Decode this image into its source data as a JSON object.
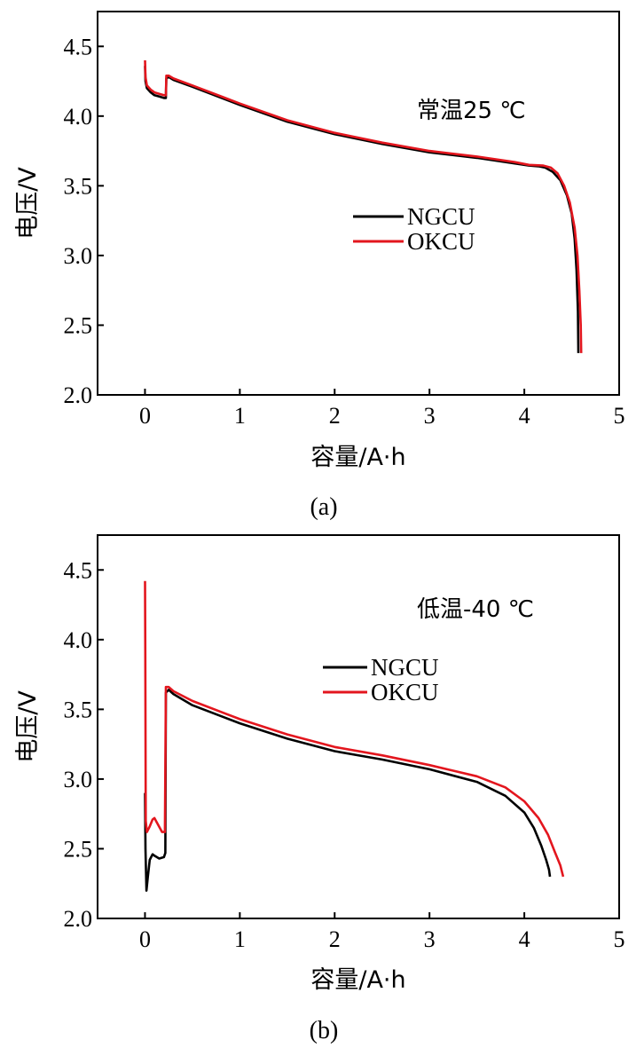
{
  "chart_data": [
    {
      "panel_label": "(a)",
      "type": "line",
      "title": "",
      "annotation": "常温25 ℃",
      "xlabel": "容量/A·h",
      "ylabel": "电压/V",
      "xlim": [
        -0.5,
        5
      ],
      "ylim": [
        2.0,
        4.75
      ],
      "xticks": [
        0,
        1,
        2,
        3,
        4,
        5
      ],
      "xtick_labels": [
        "0",
        "1",
        "2",
        "3",
        "4",
        "5"
      ],
      "yticks": [
        2.0,
        2.5,
        3.0,
        3.5,
        4.0,
        4.5
      ],
      "ytick_labels": [
        "2.0",
        "2.5",
        "3.0",
        "3.5",
        "4.0",
        "4.5"
      ],
      "legend_position": "center-right",
      "series": [
        {
          "name": "NGCU",
          "color": "#000000",
          "x": [
            0,
            0.005,
            0.02,
            0.06,
            0.1,
            0.15,
            0.2,
            0.22,
            0.225,
            0.25,
            0.3,
            0.5,
            1.0,
            1.5,
            2.0,
            2.5,
            3.0,
            3.5,
            3.9,
            4.05,
            4.15,
            4.22,
            4.3,
            4.38,
            4.45,
            4.5,
            4.53,
            4.55,
            4.565,
            4.57
          ],
          "y": [
            4.36,
            4.25,
            4.2,
            4.17,
            4.15,
            4.14,
            4.13,
            4.13,
            4.27,
            4.28,
            4.26,
            4.21,
            4.08,
            3.96,
            3.87,
            3.8,
            3.74,
            3.7,
            3.66,
            3.645,
            3.64,
            3.63,
            3.6,
            3.54,
            3.43,
            3.3,
            3.12,
            2.9,
            2.6,
            2.3
          ]
        },
        {
          "name": "OKCU",
          "color": "#e3161e",
          "x": [
            0,
            0.005,
            0.02,
            0.06,
            0.1,
            0.15,
            0.2,
            0.22,
            0.225,
            0.25,
            0.3,
            0.5,
            1.0,
            1.5,
            2.0,
            2.5,
            3.0,
            3.5,
            3.9,
            4.05,
            4.2,
            4.28,
            4.35,
            4.42,
            4.48,
            4.53,
            4.56,
            4.58,
            4.595,
            4.6
          ],
          "y": [
            4.4,
            4.28,
            4.22,
            4.19,
            4.17,
            4.16,
            4.15,
            4.15,
            4.29,
            4.29,
            4.27,
            4.22,
            4.09,
            3.97,
            3.88,
            3.81,
            3.75,
            3.71,
            3.67,
            3.65,
            3.645,
            3.63,
            3.59,
            3.5,
            3.38,
            3.2,
            3.0,
            2.75,
            2.5,
            2.3
          ]
        }
      ]
    },
    {
      "panel_label": "(b)",
      "type": "line",
      "title": "",
      "annotation": "低温-40 ℃",
      "xlabel": "容量/A·h",
      "ylabel": "电压/V",
      "xlim": [
        -0.5,
        5
      ],
      "ylim": [
        2.0,
        4.75
      ],
      "xticks": [
        0,
        1,
        2,
        3,
        4,
        5
      ],
      "xtick_labels": [
        "0",
        "1",
        "2",
        "3",
        "4",
        "5"
      ],
      "yticks": [
        2.0,
        2.5,
        3.0,
        3.5,
        4.0,
        4.5
      ],
      "ytick_labels": [
        "2.0",
        "2.5",
        "3.0",
        "3.5",
        "4.0",
        "4.5"
      ],
      "legend_position": "center-right",
      "series": [
        {
          "name": "NGCU",
          "color": "#000000",
          "x": [
            0,
            0.005,
            0.015,
            0.03,
            0.05,
            0.08,
            0.1,
            0.15,
            0.2,
            0.215,
            0.22,
            0.25,
            0.3,
            0.5,
            1.0,
            1.5,
            2.0,
            2.5,
            3.0,
            3.5,
            3.8,
            4.0,
            4.1,
            4.18,
            4.23,
            4.26,
            4.27
          ],
          "y": [
            2.9,
            2.5,
            2.2,
            2.3,
            2.42,
            2.46,
            2.45,
            2.43,
            2.44,
            2.47,
            3.62,
            3.64,
            3.61,
            3.53,
            3.4,
            3.29,
            3.2,
            3.14,
            3.07,
            2.98,
            2.88,
            2.76,
            2.65,
            2.52,
            2.42,
            2.35,
            2.3
          ]
        },
        {
          "name": "OKCU",
          "color": "#e3161e",
          "x": [
            0,
            0.003,
            0.008,
            0.02,
            0.05,
            0.08,
            0.1,
            0.14,
            0.18,
            0.21,
            0.22,
            0.25,
            0.3,
            0.5,
            1.0,
            1.5,
            2.0,
            2.5,
            3.0,
            3.5,
            3.8,
            4.0,
            4.15,
            4.25,
            4.32,
            4.38,
            4.41
          ],
          "y": [
            4.42,
            3.9,
            2.7,
            2.62,
            2.66,
            2.71,
            2.72,
            2.67,
            2.62,
            2.62,
            3.66,
            3.66,
            3.63,
            3.56,
            3.43,
            3.32,
            3.23,
            3.17,
            3.1,
            3.02,
            2.94,
            2.84,
            2.72,
            2.6,
            2.48,
            2.38,
            2.3
          ]
        }
      ]
    }
  ]
}
